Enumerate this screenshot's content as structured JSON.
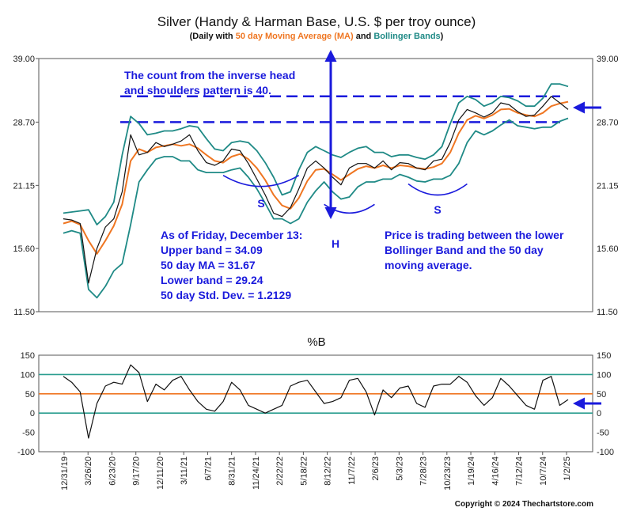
{
  "chart_data": {
    "type": "line",
    "title": "Silver (Handy & Harman Base, U.S. $ per troy ounce)",
    "subtitle": {
      "prefix": "(Daily with ",
      "ma_label": "50 day Moving Average (MA)",
      "and": " and ",
      "bb_label": "Bollinger Bands",
      "suffix": ")"
    },
    "price_panel": {
      "scale": "log",
      "ylim": [
        11.5,
        39.0
      ],
      "yticks": [
        "39.00",
        "28.70",
        "21.15",
        "15.60",
        "11.50"
      ],
      "ytick_values": [
        39.0,
        28.7,
        21.15,
        15.6,
        11.5
      ],
      "series": {
        "x": [
          0,
          1,
          2,
          3,
          4,
          5,
          6,
          7,
          8,
          9,
          10,
          11,
          12,
          13,
          14,
          15,
          16,
          17,
          18,
          19,
          20,
          21,
          22,
          23,
          24,
          25,
          26,
          27,
          28,
          29,
          30,
          31,
          32,
          33,
          34,
          35,
          36,
          37,
          38,
          39,
          40,
          41,
          42,
          43,
          44,
          45,
          46,
          47,
          48,
          49,
          50,
          51,
          52,
          53,
          54,
          55,
          56,
          57,
          58,
          59,
          60
        ],
        "price": [
          18.0,
          17.9,
          17.6,
          13.2,
          15.6,
          17.3,
          18.0,
          20.5,
          27.0,
          24.5,
          24.8,
          26.0,
          25.5,
          25.8,
          26.2,
          27.0,
          25.0,
          23.6,
          23.3,
          23.8,
          25.2,
          25.0,
          23.5,
          21.8,
          20.2,
          18.5,
          18.2,
          19.0,
          20.8,
          23.0,
          23.8,
          23.0,
          22.0,
          21.2,
          23.0,
          23.5,
          23.5,
          23.0,
          23.8,
          22.8,
          23.6,
          23.5,
          23.0,
          22.8,
          23.8,
          24.0,
          26.0,
          29.0,
          30.5,
          30.0,
          29.4,
          30.0,
          31.5,
          31.2,
          30.2,
          29.5,
          29.7,
          31.0,
          32.5,
          31.5,
          30.5
        ],
        "ma50": [
          17.6,
          17.8,
          17.5,
          16.2,
          15.2,
          16.2,
          17.4,
          19.3,
          23.8,
          25.2,
          24.8,
          25.4,
          25.6,
          25.8,
          25.6,
          25.8,
          25.3,
          24.5,
          23.8,
          23.6,
          24.3,
          24.6,
          24.0,
          23.0,
          21.7,
          20.2,
          19.2,
          18.9,
          19.9,
          21.6,
          22.8,
          22.9,
          22.3,
          21.7,
          22.3,
          22.9,
          23.2,
          23.0,
          23.3,
          23.0,
          23.3,
          23.2,
          23.0,
          22.9,
          23.1,
          23.5,
          24.8,
          27.2,
          29.0,
          29.6,
          29.2,
          29.7,
          30.5,
          30.6,
          30.0,
          29.7,
          29.5,
          30.0,
          31.0,
          31.4,
          31.67
        ],
        "upper": [
          18.5,
          18.6,
          18.7,
          18.8,
          17.5,
          18.2,
          19.5,
          24.5,
          29.5,
          28.5,
          27.0,
          27.2,
          27.5,
          27.5,
          27.8,
          28.2,
          28.0,
          26.5,
          25.2,
          25.0,
          26.0,
          26.2,
          26.0,
          25.0,
          23.6,
          22.0,
          20.2,
          20.5,
          22.8,
          24.8,
          25.5,
          25.0,
          24.5,
          24.2,
          24.8,
          25.3,
          25.5,
          24.8,
          24.8,
          24.3,
          24.5,
          24.5,
          24.2,
          24.0,
          24.5,
          25.5,
          28.5,
          31.5,
          32.5,
          32.0,
          31.0,
          31.5,
          32.5,
          32.3,
          31.8,
          31.0,
          31.0,
          32.2,
          34.5,
          34.5,
          34.09
        ],
        "lower": [
          16.8,
          17.0,
          16.8,
          12.8,
          12.3,
          13.0,
          14.0,
          14.5,
          17.5,
          21.5,
          22.8,
          24.0,
          24.3,
          24.3,
          23.8,
          23.8,
          22.8,
          22.5,
          22.5,
          22.5,
          22.8,
          23.0,
          22.0,
          20.8,
          19.4,
          18.0,
          18.0,
          17.6,
          18.0,
          19.5,
          20.6,
          21.5,
          20.5,
          19.8,
          20.0,
          21.0,
          21.5,
          21.5,
          21.8,
          21.8,
          22.3,
          22.0,
          21.6,
          21.5,
          21.8,
          21.8,
          22.2,
          23.5,
          26.0,
          27.5,
          27.0,
          27.5,
          28.3,
          29.0,
          28.2,
          28.0,
          27.8,
          28.0,
          28.0,
          28.8,
          29.24
        ]
      },
      "neckline": 28.7,
      "target": 32.5
    },
    "percent_b_panel": {
      "title": "%B",
      "ylim": [
        -100,
        150
      ],
      "yticks": [
        "150",
        "100",
        "50",
        "0",
        "-50",
        "-100"
      ],
      "ytick_values": [
        150,
        100,
        50,
        0,
        -50,
        -100
      ],
      "reference_lines": [
        100,
        50,
        0
      ],
      "series": {
        "x": [
          0,
          1,
          2,
          3,
          4,
          5,
          6,
          7,
          8,
          9,
          10,
          11,
          12,
          13,
          14,
          15,
          16,
          17,
          18,
          19,
          20,
          21,
          22,
          23,
          24,
          25,
          26,
          27,
          28,
          29,
          30,
          31,
          32,
          33,
          34,
          35,
          36,
          37,
          38,
          39,
          40,
          41,
          42,
          43,
          44,
          45,
          46,
          47,
          48,
          49,
          50,
          51,
          52,
          53,
          54,
          55,
          56,
          57,
          58,
          59,
          60
        ],
        "values": [
          95,
          80,
          55,
          -65,
          25,
          70,
          80,
          75,
          125,
          105,
          30,
          75,
          60,
          85,
          95,
          60,
          30,
          10,
          5,
          30,
          80,
          60,
          20,
          10,
          0,
          10,
          20,
          70,
          80,
          85,
          55,
          25,
          30,
          40,
          85,
          90,
          55,
          -5,
          60,
          40,
          65,
          70,
          25,
          15,
          70,
          75,
          75,
          95,
          80,
          45,
          20,
          40,
          90,
          70,
          45,
          20,
          10,
          85,
          95,
          20,
          35
        ]
      }
    },
    "x_ticks": [
      "12/31/19",
      "3/26/20",
      "6/23/20",
      "9/17/20",
      "12/11/20",
      "3/11/21",
      "6/7/21",
      "8/31/21",
      "11/24/21",
      "2/22/22",
      "5/18/22",
      "8/12/22",
      "11/7/22",
      "2/6/23",
      "5/3/23",
      "7/28/23",
      "10/23/23",
      "1/19/24",
      "4/16/24",
      "7/12/24",
      "10/7/24",
      "1/2/25"
    ],
    "annotations": {
      "count": [
        "The count from the inverse head",
        "and shoulders pattern is 40."
      ],
      "stats": [
        "As of Friday, December 13:",
        "Upper band = 34.09",
        "50 day MA = 31.67",
        "Lower band = 29.24",
        "50 day Std. Dev. = 1.2129"
      ],
      "note": [
        "Price is trading between the lower",
        "Bollinger Band and the 50 day",
        "moving average."
      ],
      "left_shoulder": "S",
      "head": "H",
      "right_shoulder": "S"
    },
    "colors": {
      "price": "#111111",
      "ma": "#ef7622",
      "bands": "#1f8a86",
      "annotation": "#1a1adc",
      "ref_line_teal": "#2a9d8f",
      "ref_line_orange": "#ef7622"
    }
  },
  "copyright": "Copyright © 2024 Thechartstore.com"
}
